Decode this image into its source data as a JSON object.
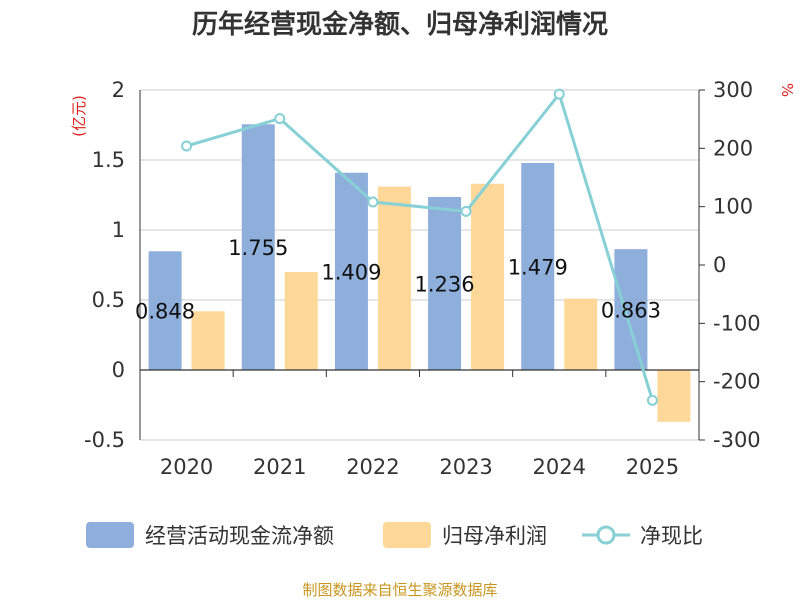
{
  "chart_data": {
    "type": "bar",
    "title": "历年经营现金净额、归母净利润情况",
    "categories": [
      "2020",
      "2021",
      "2022",
      "2023",
      "2024",
      "2025"
    ],
    "series": [
      {
        "name": "经营活动现金流净额",
        "axis": "left",
        "kind": "bar",
        "values": [
          0.848,
          1.755,
          1.409,
          1.236,
          1.479,
          0.863
        ],
        "data_labels": [
          "0.848",
          "1.755",
          "1.409",
          "1.236",
          "1.479",
          "0.863"
        ]
      },
      {
        "name": "归母净利润",
        "axis": "left",
        "kind": "bar",
        "values": [
          0.42,
          0.7,
          1.31,
          1.33,
          0.51,
          -0.37
        ]
      },
      {
        "name": "净现比",
        "axis": "right",
        "kind": "line",
        "values": [
          204,
          251,
          108,
          92,
          293,
          -232
        ]
      }
    ],
    "left_axis": {
      "unit": "(亿元)",
      "ylim": [
        -0.5,
        2
      ],
      "ticks": [
        2,
        1.5,
        1,
        0.5,
        0,
        -0.5
      ],
      "tick_labels": [
        "2",
        "1.5",
        "1",
        "0.5",
        "0",
        "-0.5"
      ]
    },
    "right_axis": {
      "unit": "%",
      "ylim": [
        -300,
        300
      ],
      "ticks": [
        300,
        200,
        100,
        0,
        -100,
        -200,
        -300
      ],
      "tick_labels": [
        "300",
        "200",
        "100",
        "0",
        "-100",
        "-200",
        "-300"
      ]
    },
    "grid": true,
    "legend_position": "bottom",
    "colors": {
      "bar1": "#8eaedc",
      "bar2": "#fdd898",
      "line": "#87d0d6",
      "unit": "#e02020",
      "source": "#c8961e"
    },
    "source_note": "制图数据来自恒生聚源数据库"
  }
}
